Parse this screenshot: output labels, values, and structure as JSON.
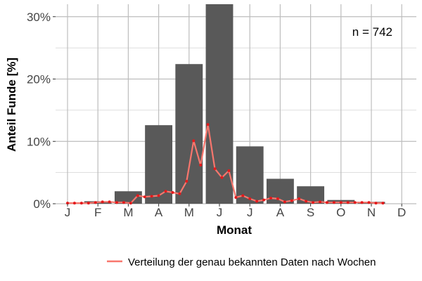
{
  "chart_data": {
    "type": "bar",
    "xlabel": "Monat",
    "ylabel": "Anteil Funde [%]",
    "categories": [
      "J",
      "F",
      "M",
      "A",
      "M",
      "J",
      "J",
      "A",
      "S",
      "O",
      "N",
      "D"
    ],
    "values": [
      0.0,
      0.4,
      2.0,
      12.6,
      22.4,
      32.0,
      9.2,
      4.0,
      2.8,
      0.6,
      0.3,
      0.0
    ],
    "ylim": [
      0,
      32
    ],
    "yticks": [
      0,
      10,
      20,
      30
    ],
    "ytick_labels": [
      "0%",
      "10%",
      "20%",
      "30%"
    ],
    "grid": true,
    "annotation": "n = 742",
    "bar_color": "#595959",
    "line_color": "#F8766D",
    "line_point_color": "#E41A1C",
    "series": [
      {
        "name": "Verteilung der genau bekannten Daten nach Wochen",
        "type": "line",
        "x": [
          1.0,
          1.23,
          1.46,
          1.69,
          1.92,
          2.15,
          2.38,
          2.62,
          2.85,
          3.08,
          3.31,
          3.54,
          3.77,
          4.0,
          4.23,
          4.46,
          4.69,
          4.92,
          5.15,
          5.38,
          5.62,
          5.85,
          6.08,
          6.31,
          6.54,
          6.77,
          7.0,
          7.23,
          7.46,
          7.69,
          7.92,
          8.15,
          8.38,
          8.62,
          8.85,
          9.08,
          9.31,
          9.54,
          9.77,
          10.0,
          10.23,
          10.46,
          10.69,
          10.92,
          11.15,
          11.38
        ],
        "values": [
          0.1,
          0.1,
          0.1,
          0.1,
          0.2,
          0.3,
          0.3,
          0.2,
          0.2,
          0.1,
          1.3,
          1.1,
          1.2,
          1.3,
          2.0,
          1.8,
          1.6,
          3.6,
          10.1,
          6.2,
          12.7,
          5.6,
          4.2,
          5.3,
          1.0,
          1.3,
          0.8,
          0.4,
          0.6,
          0.9,
          0.8,
          0.3,
          0.5,
          0.8,
          0.4,
          0.2,
          0.3,
          0.2,
          0.2,
          0.2,
          0.2,
          0.2,
          0.2,
          0.2,
          0.1,
          0.1
        ]
      }
    ]
  }
}
